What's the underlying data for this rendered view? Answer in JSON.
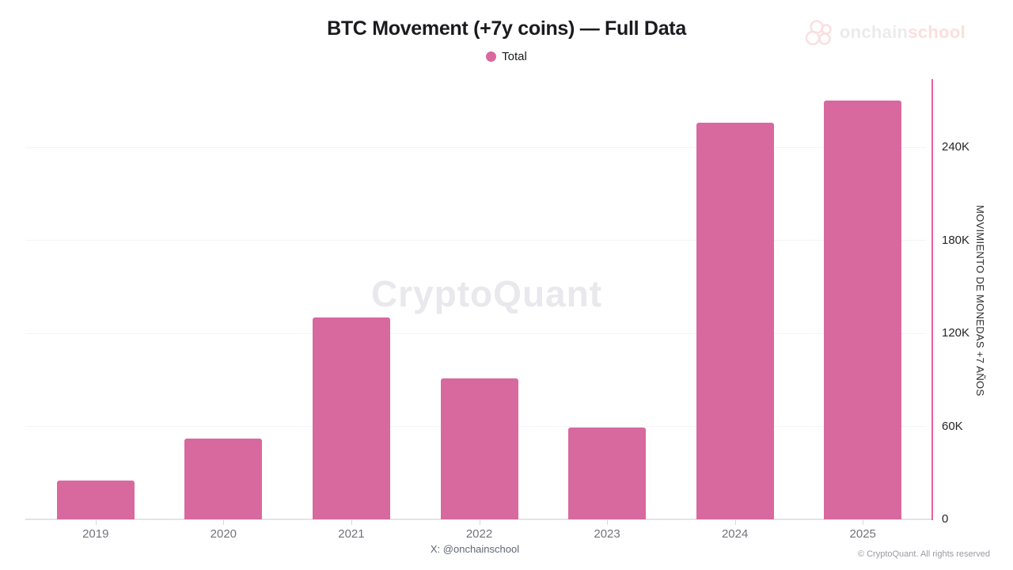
{
  "header": {
    "title": "BTC Movement (+7y coins) — Full Data",
    "brand": {
      "icon": "onchainschool-circles-icon",
      "name_primary": "onchain",
      "name_secondary": "school"
    }
  },
  "legend": {
    "items": [
      {
        "label": "Total",
        "color": "#d8699f"
      }
    ]
  },
  "watermark": "CryptoQuant",
  "y_axis": {
    "title": "MOVIMIENTO DE MONEDAS +7 AÑOS"
  },
  "footer": {
    "handle": "X: @onchainschool",
    "copyright": "© CryptoQuant. All rights reserved"
  },
  "chart_data": {
    "type": "bar",
    "title": "BTC Movement (+7y coins) — Full Data",
    "categories": [
      "2019",
      "2020",
      "2021",
      "2022",
      "2023",
      "2024",
      "2025"
    ],
    "series": [
      {
        "name": "Total",
        "color": "#d8699f",
        "values": [
          25000,
          52000,
          130000,
          91000,
          59000,
          256000,
          270000
        ]
      }
    ],
    "xlabel": "",
    "ylabel": "MOVIMIENTO DE MONEDAS +7 AÑOS",
    "ylim": [
      0,
      284000
    ],
    "y_ticks": [
      {
        "value": 0,
        "label": "0"
      },
      {
        "value": 60000,
        "label": "60K"
      },
      {
        "value": 120000,
        "label": "120K"
      },
      {
        "value": 180000,
        "label": "180K"
      },
      {
        "value": 240000,
        "label": "240K"
      }
    ],
    "grid": "horizontal",
    "legend_position": "top",
    "axis_line_color": "#ea5f9c",
    "watermark": "CryptoQuant"
  }
}
